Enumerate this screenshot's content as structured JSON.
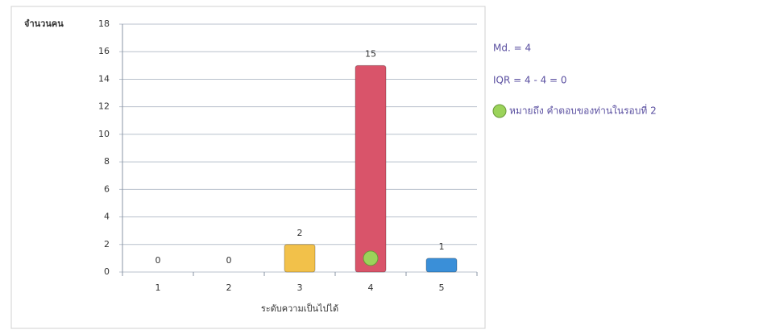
{
  "chart_data": {
    "type": "bar",
    "y_axis_label": "จำนวนคน",
    "x_axis_label": "ระดับความเป็นไปได้",
    "categories": [
      "1",
      "2",
      "3",
      "4",
      "5"
    ],
    "values": [
      0,
      0,
      2,
      15,
      1
    ],
    "colors": [
      "#f2c14a",
      "#f2c14a",
      "#f2c14a",
      "#d9546a",
      "#3a8fd8"
    ],
    "ylim": [
      0,
      18
    ],
    "yticks": [
      0,
      2,
      4,
      6,
      8,
      10,
      12,
      14,
      16,
      18
    ],
    "grid": true,
    "annotations": [
      "Md. = 4",
      "IQR = 4 - 4 = 0"
    ],
    "answer": 4,
    "answer_color": "#9bd35a",
    "legend_label": "หมายถึง คำตอบของท่านในรอบที่ 2"
  }
}
